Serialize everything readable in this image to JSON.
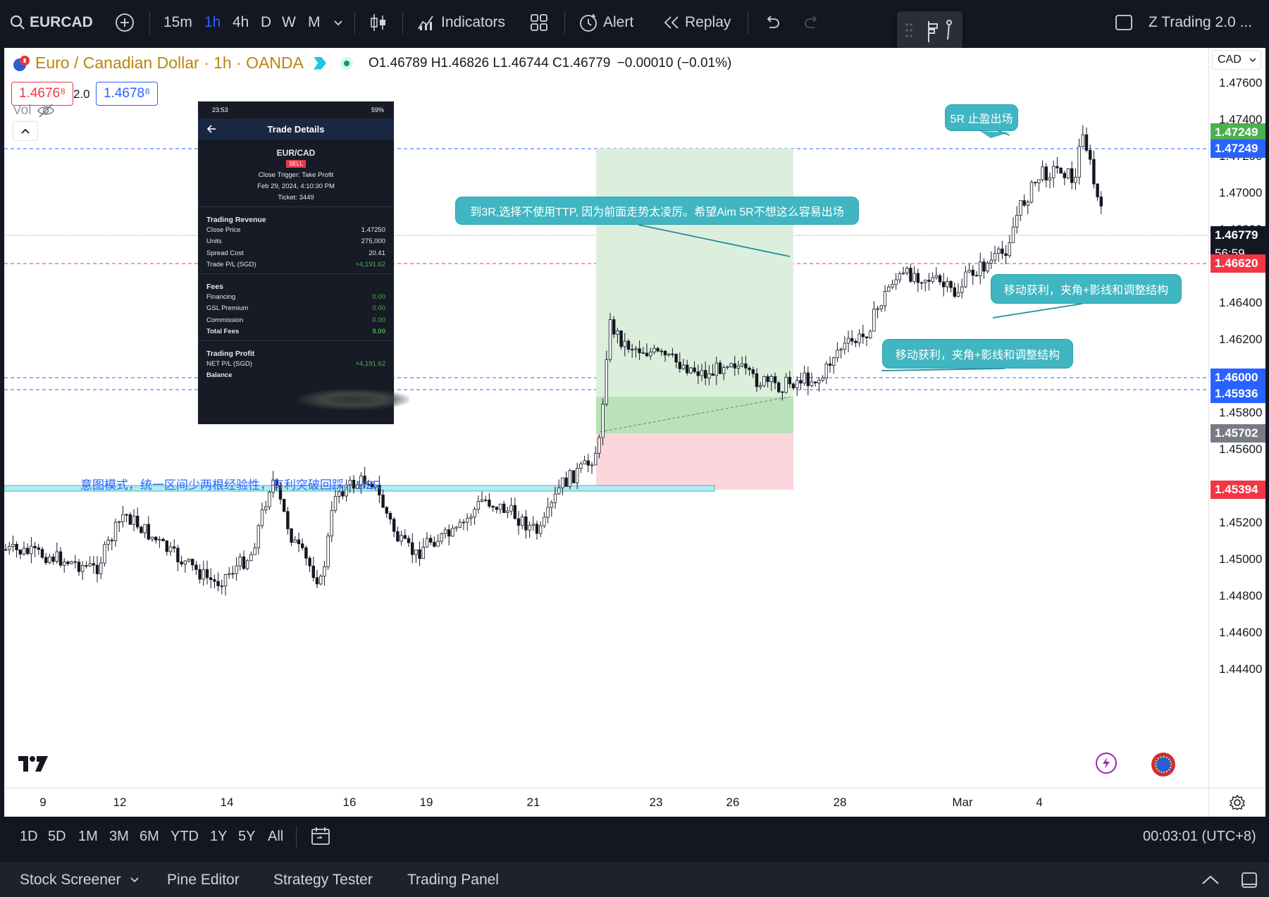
{
  "toolbar": {
    "symbol": "EURCAD",
    "intervals": [
      "15m",
      "1h",
      "4h",
      "D",
      "W",
      "M"
    ],
    "active_interval": "1h",
    "indicators": "Indicators",
    "alert": "Alert",
    "replay": "Replay",
    "layout_name": "Z Trading 2.0 ..."
  },
  "legend": {
    "title": "Euro / Canadian Dollar · 1h · OANDA",
    "o_label": "O",
    "o": "1.46789",
    "h_label": "H",
    "h": "1.46826",
    "l_label": "L",
    "l": "1.46744",
    "c_label": "C",
    "c": "1.46779",
    "change": "−0.00010 (−0.01%)",
    "sell_price": "1.4676⁸",
    "spread": "2.0",
    "buy_price": "1.4678⁸",
    "vol": "Vol"
  },
  "price_scale": {
    "currency": "CAD",
    "ticks": [
      "1.47600",
      "1.47400",
      "1.47200",
      "1.47000",
      "1.46800",
      "1.46600",
      "1.46400",
      "1.46200",
      "1.46000",
      "1.45800",
      "1.45600",
      "1.45400",
      "1.45200",
      "1.45000",
      "1.44800",
      "1.44600",
      "1.44400"
    ],
    "levels": [
      {
        "price": "1.47249",
        "color": "#4caf50"
      },
      {
        "price": "1.47249",
        "color": "#2962ff"
      },
      {
        "price": "1.46779",
        "color": "#131722",
        "countdown": "56:59"
      },
      {
        "price": "1.46620",
        "color": "#f23645"
      },
      {
        "price": "1.46000",
        "color": "#2962ff"
      },
      {
        "price": "1.45936",
        "color": "#2962ff"
      },
      {
        "price": "1.45702",
        "color": "#787b86"
      },
      {
        "price": "1.45394",
        "color": "#f23645"
      }
    ]
  },
  "time_scale": {
    "ticks": [
      "9",
      "12",
      "14",
      "16",
      "19",
      "21",
      "23",
      "26",
      "28",
      "Mar",
      "4"
    ]
  },
  "annotations": {
    "callout_5r": "5R 止盈出场",
    "callout_3r": "到3R,选择不使用TTP, 因为前面走势太凌厉。希望Aim 5R不想这么容易出场",
    "callout_trail_1": "移动获利，夹角+影线和调整结构",
    "callout_trail_2": "移动获利，夹角+影线和调整结构",
    "intent_text": "意图模式，统一区间少两根经验性，有利突破回踩，1/2R"
  },
  "phone": {
    "status_time": "23:53",
    "status_right": "59%",
    "header": "Trade Details",
    "pair": "EUR/CAD",
    "side": "SELL",
    "close_trigger": "Close Trigger: Take Profit",
    "date": "Feb 29, 2024, 4:10:30 PM",
    "ticket": "Ticket: 3449",
    "revenue_title": "Trading Revenue",
    "revenue_rows": [
      {
        "label": "Close Price",
        "value": "1.47250"
      },
      {
        "label": "Units",
        "value": "275,000"
      },
      {
        "label": "Spread Cost",
        "value": "20.41"
      },
      {
        "label": "Trade P/L (SGD)",
        "value": "+4,191.62"
      }
    ],
    "fees_title": "Fees",
    "fees_rows": [
      {
        "label": "Financing",
        "value": "0.00"
      },
      {
        "label": "GSL Premium",
        "value": "0.00"
      },
      {
        "label": "Commission",
        "value": "0.00"
      },
      {
        "label": "Total Fees",
        "value": "0.00"
      }
    ],
    "profit_title": "Trading Profit",
    "net_label": "NET P/L (SGD)",
    "net_value": "+4,191.62",
    "balance_label": "Balance"
  },
  "range_bar": {
    "ranges": [
      "1D",
      "5D",
      "1M",
      "3M",
      "6M",
      "YTD",
      "1Y",
      "5Y",
      "All"
    ],
    "clock": "00:03:01 (UTC+8)"
  },
  "footer": {
    "tabs": [
      "Stock Screener",
      "Pine Editor",
      "Strategy Tester",
      "Trading Panel"
    ]
  },
  "colors": {
    "background": "#131722",
    "chart_bg": "#ffffff",
    "accent": "#2962ff",
    "profit_zone": "#d9f0d9",
    "loss_zone": "#fad4da",
    "callout": "#3fb6c2",
    "title_gold": "#b8860b"
  }
}
